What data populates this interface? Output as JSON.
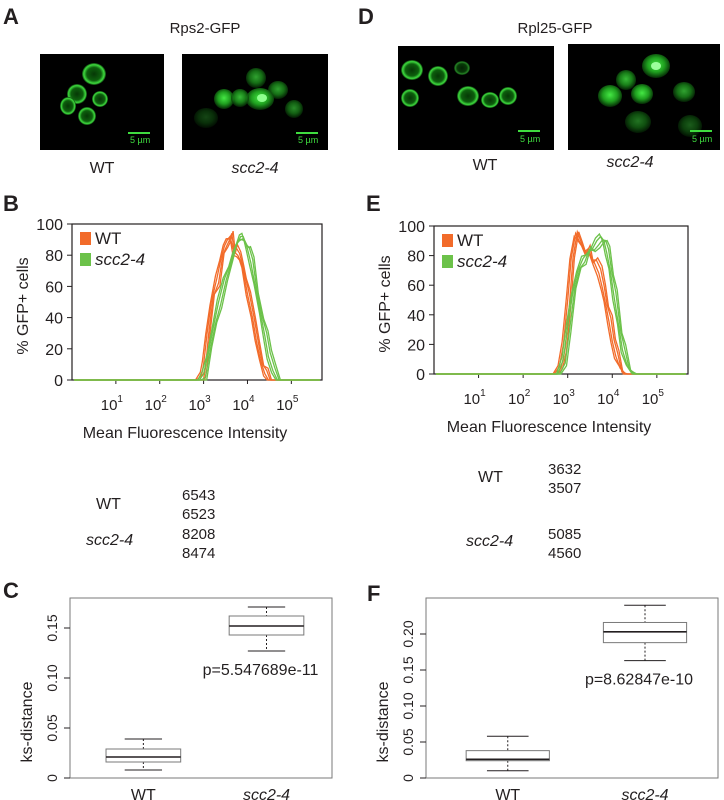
{
  "panels": {
    "A": {
      "label": "A",
      "title": "Rps2-GFP",
      "img_captions": [
        "WT",
        "scc2-4"
      ],
      "scale_bar": "5 µm"
    },
    "D": {
      "label": "D",
      "title": "Rpl25-GFP",
      "img_captions": [
        "WT",
        "scc2-4"
      ],
      "scale_bar": "5 µm"
    },
    "B": {
      "label": "B"
    },
    "E": {
      "label": "E"
    },
    "C": {
      "label": "C"
    },
    "F": {
      "label": "F"
    }
  },
  "mfi_tables": {
    "left": {
      "rows": [
        {
          "label": "WT",
          "values": [
            "6543",
            "6523"
          ]
        },
        {
          "label": "scc2-4",
          "values": [
            "8208",
            "8474"
          ]
        }
      ]
    },
    "right": {
      "rows": [
        {
          "label": "WT",
          "values": [
            "3632",
            "3507"
          ]
        },
        {
          "label": "scc2-4",
          "values": [
            "5085",
            "4560"
          ]
        }
      ]
    }
  },
  "colors": {
    "wt": "#f26b2a",
    "scc24": "#6cc24a",
    "gfp": "#3fdc3f"
  },
  "chart_data": [
    {
      "id": "B",
      "type": "line",
      "ylabel": "% GFP+ cells",
      "xlabel": "Mean Fluorescence Intensity",
      "xscale": "log",
      "xlim": [
        1,
        500000
      ],
      "ylim": [
        0,
        100
      ],
      "yticks": [
        "0",
        "20",
        "40",
        "60",
        "80",
        "100"
      ],
      "xticks": [
        {
          "base": "10",
          "exp": "1"
        },
        {
          "base": "10",
          "exp": "2"
        },
        {
          "base": "10",
          "exp": "3"
        },
        {
          "base": "10",
          "exp": "4"
        },
        {
          "base": "10",
          "exp": "5"
        }
      ],
      "legend": "top-left",
      "series": [
        {
          "name": "WT",
          "color": "#f26b2a",
          "replicates": 4,
          "points": [
            [
              700,
              0
            ],
            [
              900,
              3
            ],
            [
              1000,
              10
            ],
            [
              1200,
              30
            ],
            [
              1500,
              50
            ],
            [
              2000,
              65
            ],
            [
              2500,
              78
            ],
            [
              3000,
              86
            ],
            [
              3500,
              90
            ],
            [
              4000,
              92
            ],
            [
              4500,
              86
            ],
            [
              5000,
              82
            ],
            [
              6000,
              80
            ],
            [
              7000,
              76
            ],
            [
              8000,
              70
            ],
            [
              10000,
              55
            ],
            [
              13000,
              40
            ],
            [
              16000,
              25
            ],
            [
              20000,
              12
            ],
            [
              25000,
              4
            ],
            [
              30000,
              0
            ]
          ]
        },
        {
          "name": "scc2-4",
          "color": "#6cc24a",
          "replicates": 4,
          "points": [
            [
              800,
              0
            ],
            [
              1000,
              4
            ],
            [
              1300,
              18
            ],
            [
              1700,
              35
            ],
            [
              2200,
              50
            ],
            [
              3000,
              65
            ],
            [
              4000,
              74
            ],
            [
              5000,
              84
            ],
            [
              6000,
              88
            ],
            [
              7000,
              92
            ],
            [
              8000,
              92
            ],
            [
              9000,
              88
            ],
            [
              10000,
              84
            ],
            [
              12000,
              75
            ],
            [
              15000,
              60
            ],
            [
              20000,
              42
            ],
            [
              25000,
              28
            ],
            [
              30000,
              15
            ],
            [
              38000,
              6
            ],
            [
              48000,
              0
            ]
          ]
        }
      ]
    },
    {
      "id": "E",
      "type": "line",
      "ylabel": "% GFP+ cells",
      "xlabel": "Mean Fluorescence Intensity",
      "xscale": "log",
      "xlim": [
        1,
        500000
      ],
      "ylim": [
        0,
        100
      ],
      "yticks": [
        "0",
        "20",
        "40",
        "60",
        "80",
        "100"
      ],
      "xticks": [
        {
          "base": "10",
          "exp": "1"
        },
        {
          "base": "10",
          "exp": "2"
        },
        {
          "base": "10",
          "exp": "3"
        },
        {
          "base": "10",
          "exp": "4"
        },
        {
          "base": "10",
          "exp": "5"
        }
      ],
      "legend": "top-left",
      "series": [
        {
          "name": "WT",
          "color": "#f26b2a",
          "replicates": 4,
          "points": [
            [
              500,
              0
            ],
            [
              650,
              5
            ],
            [
              800,
              20
            ],
            [
              1000,
              50
            ],
            [
              1200,
              78
            ],
            [
              1500,
              95
            ],
            [
              1800,
              90
            ],
            [
              2200,
              85
            ],
            [
              2700,
              82
            ],
            [
              3200,
              80
            ],
            [
              4000,
              75
            ],
            [
              5000,
              68
            ],
            [
              6000,
              58
            ],
            [
              7000,
              48
            ],
            [
              8500,
              35
            ],
            [
              10000,
              22
            ],
            [
              12000,
              12
            ],
            [
              15000,
              4
            ],
            [
              20000,
              0
            ]
          ]
        },
        {
          "name": "scc2-4",
          "color": "#6cc24a",
          "replicates": 4,
          "points": [
            [
              600,
              0
            ],
            [
              800,
              10
            ],
            [
              1000,
              32
            ],
            [
              1300,
              55
            ],
            [
              1700,
              70
            ],
            [
              2200,
              78
            ],
            [
              2800,
              82
            ],
            [
              3500,
              84
            ],
            [
              4500,
              90
            ],
            [
              5500,
              93
            ],
            [
              6500,
              90
            ],
            [
              7500,
              82
            ],
            [
              9000,
              70
            ],
            [
              11000,
              52
            ],
            [
              14000,
              32
            ],
            [
              17000,
              16
            ],
            [
              22000,
              5
            ],
            [
              30000,
              0
            ]
          ]
        }
      ]
    },
    {
      "id": "C",
      "type": "box",
      "ylabel": "ks-distance",
      "categories": [
        "WT",
        "scc2-4"
      ],
      "ylim": [
        0,
        0.18
      ],
      "yticks": [
        "0",
        "0.05",
        "0.10",
        "0.15"
      ],
      "ytick_values": [
        0,
        0.05,
        0.1,
        0.15
      ],
      "boxes": [
        {
          "min": 0.008,
          "q1": 0.016,
          "median": 0.021,
          "q3": 0.029,
          "max": 0.039
        },
        {
          "min": 0.127,
          "q1": 0.143,
          "median": 0.152,
          "q3": 0.162,
          "max": 0.171
        }
      ],
      "annotation": "p=5.547689e-11"
    },
    {
      "id": "F",
      "type": "box",
      "ylabel": "ks-distance",
      "categories": [
        "WT",
        "scc2-4"
      ],
      "ylim": [
        0,
        0.25
      ],
      "yticks": [
        "0",
        "0.05",
        "0.10",
        "0.15",
        "0.20"
      ],
      "ytick_values": [
        0,
        0.05,
        0.1,
        0.15,
        0.2
      ],
      "boxes": [
        {
          "min": 0.01,
          "q1": 0.024,
          "median": 0.026,
          "q3": 0.038,
          "max": 0.058
        },
        {
          "min": 0.163,
          "q1": 0.188,
          "median": 0.203,
          "q3": 0.216,
          "max": 0.24
        }
      ],
      "annotation": "p=8.62847e-10"
    }
  ]
}
